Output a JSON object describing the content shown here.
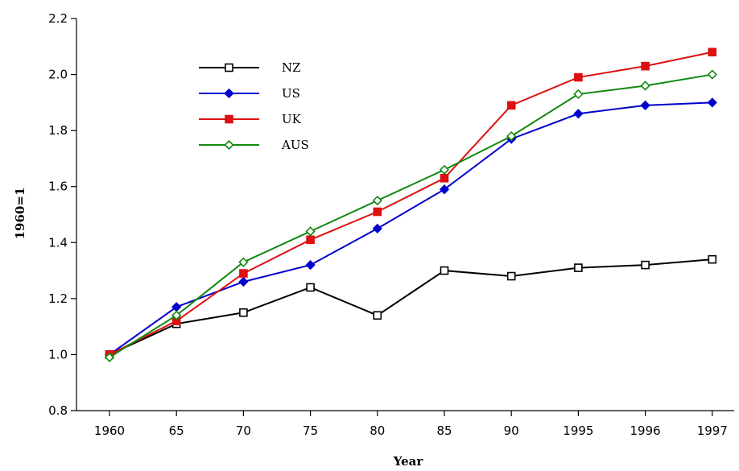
{
  "chart_data": {
    "type": "line",
    "title": "",
    "xlabel": "Year",
    "ylabel": "1960=1",
    "categories": [
      "1960",
      "65",
      "70",
      "75",
      "80",
      "85",
      "90",
      "1995",
      "1996",
      "1997"
    ],
    "ylim": [
      0.8,
      2.2
    ],
    "yticks": [
      "0.8",
      "1.0",
      "1.2",
      "1.4",
      "1.6",
      "1.8",
      "2.0",
      "2.2"
    ],
    "grid": false,
    "legend_position": "top-left",
    "series": [
      {
        "name": "NZ",
        "color": "#000000",
        "marker": "open-square",
        "values": [
          1.0,
          1.11,
          1.15,
          1.24,
          1.14,
          1.3,
          1.28,
          1.31,
          1.32,
          1.34
        ]
      },
      {
        "name": "US",
        "color": "#0000cc",
        "marker": "filled-diamond",
        "values": [
          1.0,
          1.17,
          1.26,
          1.32,
          1.45,
          1.59,
          1.77,
          1.86,
          1.89,
          1.9
        ]
      },
      {
        "name": "UK",
        "color": "#dd1111",
        "marker": "filled-square",
        "values": [
          1.0,
          1.12,
          1.29,
          1.41,
          1.51,
          1.63,
          1.89,
          1.99,
          2.03,
          2.08
        ]
      },
      {
        "name": "AUS",
        "color": "#118811",
        "marker": "open-diamond",
        "values": [
          0.99,
          1.14,
          1.33,
          1.44,
          1.55,
          1.66,
          1.78,
          1.93,
          1.96,
          2.0
        ]
      }
    ]
  }
}
